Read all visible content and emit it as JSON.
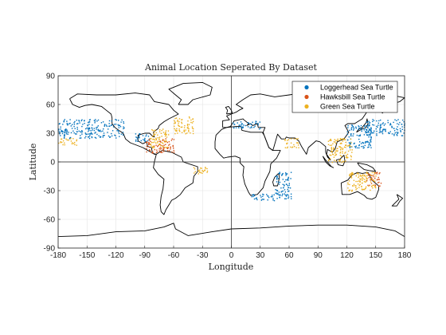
{
  "chart_data": {
    "type": "scatter",
    "title": "Animal Location Seperated By Dataset",
    "xlabel": "Longitude",
    "ylabel": "Latitude",
    "xlim": [
      -180,
      180
    ],
    "ylim": [
      -90,
      90
    ],
    "xticks": [
      "-180",
      "-150",
      "-120",
      "-90",
      "-60",
      "-30",
      "0",
      "30",
      "60",
      "90",
      "120",
      "150",
      "180"
    ],
    "yticks": [
      "90",
      "60",
      "30",
      "0",
      "-30",
      "-60",
      "-90"
    ],
    "grid": true,
    "reference_lines": {
      "x": 0,
      "y": 0
    },
    "legend_position": "top-right",
    "background_layer": "world coastline outline (black)",
    "series": [
      {
        "name": "Loggerhead Sea Turtle",
        "color": "#0072BD",
        "regions": [
          {
            "lon": [
              -180,
              -110
            ],
            "lat": [
              25,
              45
            ]
          },
          {
            "lon": [
              -100,
              -85
            ],
            "lat": [
              22,
              30
            ]
          },
          {
            "lon": [
              0,
              30
            ],
            "lat": [
              35,
              43
            ]
          },
          {
            "lon": [
              45,
              62
            ],
            "lat": [
              -38,
              -10
            ]
          },
          {
            "lon": [
              20,
              45
            ],
            "lat": [
              -40,
              -33
            ]
          },
          {
            "lon": [
              120,
              145
            ],
            "lat": [
              15,
              40
            ]
          },
          {
            "lon": [
              140,
              180
            ],
            "lat": [
              28,
              45
            ]
          }
        ]
      },
      {
        "name": "Hawksbill Sea Turtle",
        "color": "#D95319",
        "regions": [
          {
            "lon": [
              -90,
              -60
            ],
            "lat": [
              10,
              25
            ]
          },
          {
            "lon": [
              140,
              155
            ],
            "lat": [
              -25,
              -10
            ]
          }
        ]
      },
      {
        "name": "Green Sea Turtle",
        "color": "#EDB120",
        "regions": [
          {
            "lon": [
              -180,
              -160
            ],
            "lat": [
              18,
              25
            ]
          },
          {
            "lon": [
              -85,
              -65
            ],
            "lat": [
              15,
              35
            ]
          },
          {
            "lon": [
              -60,
              -40
            ],
            "lat": [
              30,
              48
            ]
          },
          {
            "lon": [
              -40,
              -25
            ],
            "lat": [
              -12,
              -5
            ]
          },
          {
            "lon": [
              55,
              70
            ],
            "lat": [
              15,
              25
            ]
          },
          {
            "lon": [
              100,
              125
            ],
            "lat": [
              0,
              25
            ]
          },
          {
            "lon": [
              120,
              150
            ],
            "lat": [
              -30,
              -10
            ]
          }
        ]
      }
    ]
  }
}
